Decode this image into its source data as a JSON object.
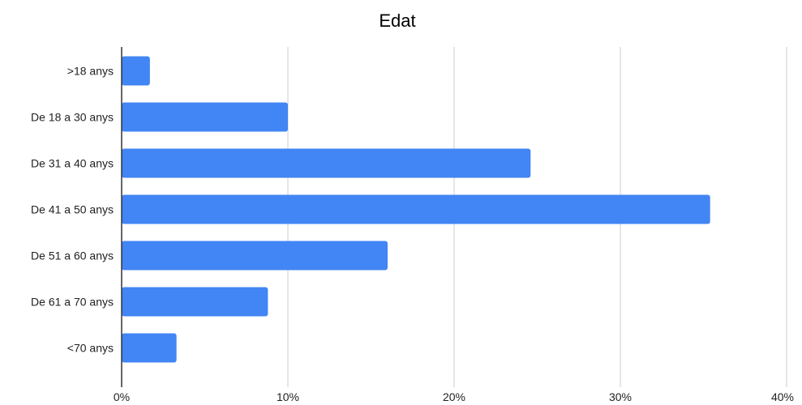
{
  "chart_data": {
    "type": "bar",
    "orientation": "horizontal",
    "title": "Edat",
    "xlabel": "",
    "ylabel": "",
    "categories": [
      ">18 anys",
      "De 18 a 30 anys",
      "De 31 a 40 anys",
      "De 41 a 50 anys",
      "De 51 a 60 anys",
      "De 61 a 70 anys",
      "<70 anys"
    ],
    "values": [
      1.7,
      10.0,
      24.6,
      35.4,
      16.0,
      8.8,
      3.3
    ],
    "xlim": [
      0,
      40
    ],
    "ticks": [
      0,
      10,
      20,
      30,
      40
    ],
    "tick_labels": [
      "0%",
      "10%",
      "20%",
      "30%",
      "40%"
    ],
    "grid": true,
    "bar_color": "#4285f4"
  }
}
